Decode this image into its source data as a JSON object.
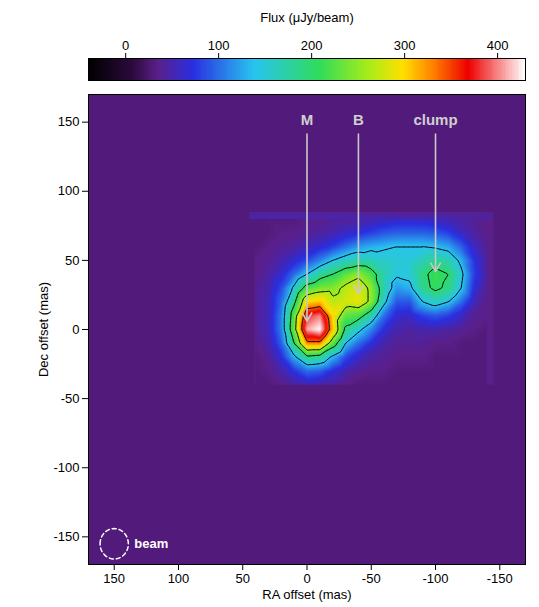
{
  "chart_data": {
    "type": "heatmap",
    "xlabel": "RA offset (mas)",
    "ylabel": "Dec offset (mas)",
    "xlim": [
      170,
      -170
    ],
    "ylim": [
      -170,
      170
    ],
    "xticks": [
      150,
      100,
      50,
      0,
      -50,
      -100,
      -150
    ],
    "yticks": [
      -150,
      -100,
      -50,
      0,
      50,
      100,
      150
    ],
    "cells": {
      "x": [
        40,
        30,
        20,
        10,
        0,
        -10,
        -20,
        -30,
        -40,
        -50,
        -60,
        -70,
        -80,
        -90,
        -100,
        -110,
        -120,
        -130,
        -140
      ],
      "y": [
        80,
        70,
        60,
        50,
        40,
        30,
        20,
        10,
        0,
        -10,
        -20,
        -30,
        -40
      ],
      "values": [
        [
          30,
          30,
          30,
          30,
          35,
          35,
          40,
          40,
          45,
          50,
          55,
          60,
          60,
          60,
          55,
          50,
          45,
          40,
          35
        ],
        [
          30,
          30,
          35,
          35,
          40,
          45,
          50,
          60,
          70,
          80,
          90,
          95,
          95,
          95,
          90,
          80,
          60,
          45,
          35
        ],
        [
          30,
          35,
          40,
          45,
          55,
          65,
          80,
          100,
          120,
          130,
          135,
          140,
          140,
          140,
          135,
          125,
          95,
          60,
          40
        ],
        [
          35,
          40,
          50,
          65,
          85,
          110,
          140,
          160,
          170,
          165,
          155,
          150,
          150,
          165,
          180,
          170,
          130,
          75,
          45
        ],
        [
          35,
          45,
          65,
          100,
          140,
          180,
          200,
          230,
          250,
          220,
          170,
          145,
          150,
          190,
          215,
          200,
          150,
          80,
          45
        ],
        [
          40,
          50,
          85,
          150,
          220,
          240,
          245,
          270,
          285,
          250,
          170,
          120,
          130,
          185,
          210,
          190,
          140,
          70,
          40
        ],
        [
          40,
          55,
          100,
          190,
          300,
          310,
          270,
          280,
          290,
          250,
          150,
          90,
          90,
          140,
          160,
          140,
          100,
          55,
          35
        ],
        [
          40,
          55,
          110,
          230,
          380,
          400,
          300,
          230,
          220,
          170,
          100,
          65,
          60,
          80,
          90,
          80,
          60,
          40,
          35
        ],
        [
          40,
          55,
          110,
          240,
          410,
          430,
          310,
          190,
          150,
          110,
          70,
          50,
          45,
          50,
          50,
          45,
          40,
          35,
          30
        ],
        [
          35,
          50,
          95,
          200,
          330,
          330,
          230,
          140,
          100,
          70,
          50,
          40,
          40,
          40,
          35,
          35,
          30,
          30,
          30
        ],
        [
          30,
          40,
          70,
          130,
          190,
          180,
          130,
          85,
          60,
          45,
          40,
          35,
          35,
          35,
          30,
          30,
          30,
          30,
          30
        ],
        [
          30,
          35,
          50,
          75,
          100,
          95,
          70,
          50,
          40,
          35,
          35,
          30,
          30,
          30,
          30,
          30,
          30,
          30,
          30
        ],
        [
          30,
          30,
          35,
          45,
          55,
          50,
          45,
          35,
          30,
          30,
          30,
          30,
          30,
          30,
          30,
          30,
          30,
          30,
          30
        ]
      ]
    },
    "contour_levels": [
      140,
      200,
      260,
      340
    ],
    "colorbar": {
      "label": "Flux (μJy/beam)",
      "range": [
        -40,
        430
      ],
      "ticks": [
        0,
        100,
        200,
        300,
        400
      ]
    },
    "annotations": [
      {
        "text": "M",
        "x": 0,
        "y": 150,
        "arrow_to": [
          0,
          6
        ]
      },
      {
        "text": "B",
        "x": -40,
        "y": 150,
        "arrow_to": [
          -40,
          26
        ]
      },
      {
        "text": "clump",
        "x": -100,
        "y": 150,
        "arrow_to": [
          -100,
          42
        ]
      }
    ],
    "beam": {
      "label": "beam",
      "x": 150,
      "y": -155,
      "diameter": 22
    }
  }
}
